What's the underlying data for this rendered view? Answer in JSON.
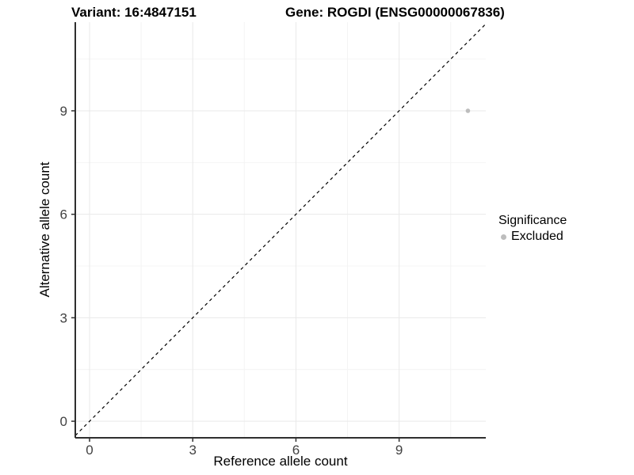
{
  "chart_data": {
    "type": "scatter",
    "title_left": "Variant: 16:4847151",
    "title_right": "Gene: ROGDI (ENSG00000067836)",
    "xlabel": "Reference allele count",
    "ylabel": "Alternative allele count",
    "x_ticks": [
      0,
      3,
      6,
      9
    ],
    "y_ticks": [
      0,
      3,
      6,
      9
    ],
    "x_minor_ticks": [
      1.5,
      4.5,
      7.5,
      10.5
    ],
    "y_minor_ticks": [
      1.5,
      4.5,
      7.5,
      10.5
    ],
    "xlim": [
      -0.415,
      11.52
    ],
    "ylim": [
      -0.48,
      11.57
    ],
    "grid": {
      "major": true,
      "minor": true
    },
    "reference_line": {
      "kind": "identity y=x",
      "style": "dashed",
      "color": "#000000"
    },
    "series": [
      {
        "name": "Excluded",
        "color": "#bdbdbd",
        "points": [
          {
            "x": 11,
            "y": 9
          }
        ]
      }
    ],
    "legend": {
      "title": "Significance",
      "position": "right",
      "entries": [
        {
          "label": "Excluded",
          "color": "#bdbdbd"
        }
      ]
    },
    "colors": {
      "background": "#ffffff",
      "axis_line": "#2f2f2f",
      "tick_mark": "#2f2f2f",
      "tick_label": "#424242",
      "grid_major": "#e9e9e9",
      "grid_minor": "#f4f4f4",
      "point": "#bdbdbd",
      "dashed_line": "#000000"
    }
  }
}
